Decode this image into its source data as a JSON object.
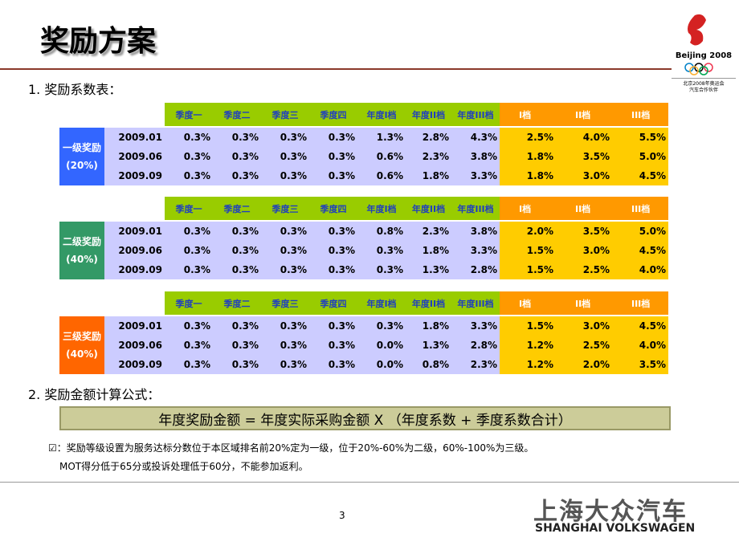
{
  "header": {
    "title": "奖励方案",
    "logo_text": "Beijing 2008",
    "logo_sub1": "北京2008年奥运会",
    "logo_sub2": "汽车合作伙伴"
  },
  "section1": "1. 奖励系数表：",
  "tables": [
    {
      "label": "一级奖励(20%)",
      "headers": [
        "季度一",
        "季度二",
        "季度三",
        "季度四",
        "年度I档",
        "年度II档",
        "年度III档",
        "I档",
        "II档",
        "III档"
      ],
      "rows": [
        [
          "2009.01",
          "0.3%",
          "0.3%",
          "0.3%",
          "0.3%",
          "1.3%",
          "2.8%",
          "4.3%",
          "2.5%",
          "4.0%",
          "5.5%"
        ],
        [
          "2009.06",
          "0.3%",
          "0.3%",
          "0.3%",
          "0.3%",
          "0.6%",
          "2.3%",
          "3.8%",
          "1.8%",
          "3.5%",
          "5.0%"
        ],
        [
          "2009.09",
          "0.3%",
          "0.3%",
          "0.3%",
          "0.3%",
          "0.6%",
          "1.8%",
          "3.3%",
          "1.8%",
          "3.0%",
          "4.5%"
        ]
      ]
    },
    {
      "label": "二级奖励(40%)",
      "headers": [
        "季度一",
        "季度二",
        "季度三",
        "季度四",
        "年度I档",
        "年度II档",
        "年度III档",
        "I档",
        "II档",
        "III档"
      ],
      "rows": [
        [
          "2009.01",
          "0.3%",
          "0.3%",
          "0.3%",
          "0.3%",
          "0.8%",
          "2.3%",
          "3.8%",
          "2.0%",
          "3.5%",
          "5.0%"
        ],
        [
          "2009.06",
          "0.3%",
          "0.3%",
          "0.3%",
          "0.3%",
          "0.3%",
          "1.8%",
          "3.3%",
          "1.5%",
          "3.0%",
          "4.5%"
        ],
        [
          "2009.09",
          "0.3%",
          "0.3%",
          "0.3%",
          "0.3%",
          "0.3%",
          "1.3%",
          "2.8%",
          "1.5%",
          "2.5%",
          "4.0%"
        ]
      ]
    },
    {
      "label": "三级奖励(40%)",
      "headers": [
        "季度一",
        "季度二",
        "季度三",
        "季度四",
        "年度I档",
        "年度II档",
        "年度III档",
        "I档",
        "II档",
        "III档"
      ],
      "rows": [
        [
          "2009.01",
          "0.3%",
          "0.3%",
          "0.3%",
          "0.3%",
          "0.3%",
          "1.8%",
          "3.3%",
          "1.5%",
          "3.0%",
          "4.5%"
        ],
        [
          "2009.06",
          "0.3%",
          "0.3%",
          "0.3%",
          "0.3%",
          "0.0%",
          "1.3%",
          "2.8%",
          "1.2%",
          "2.5%",
          "4.0%"
        ],
        [
          "2009.09",
          "0.3%",
          "0.3%",
          "0.3%",
          "0.3%",
          "0.0%",
          "0.8%",
          "2.3%",
          "1.2%",
          "2.0%",
          "3.5%"
        ]
      ]
    }
  ],
  "section2": "2.  奖励金额计算公式：",
  "formula": "年度奖励金额 = 年度实际采购金额 X （年度系数 + 季度系数合计）",
  "notes": [
    "☑：奖励等级设置为服务达标分数位于本区域排名前20%定为一级，位于20%-60%为二级，60%-100%为三级。",
    "MOT得分低于65分或投诉处理低于60分，不能参加返利。"
  ],
  "page_number": "3",
  "footer": {
    "brand_cn": "上海大众汽车",
    "brand_en": "SHANGHAI VOLKSWAGEN"
  }
}
